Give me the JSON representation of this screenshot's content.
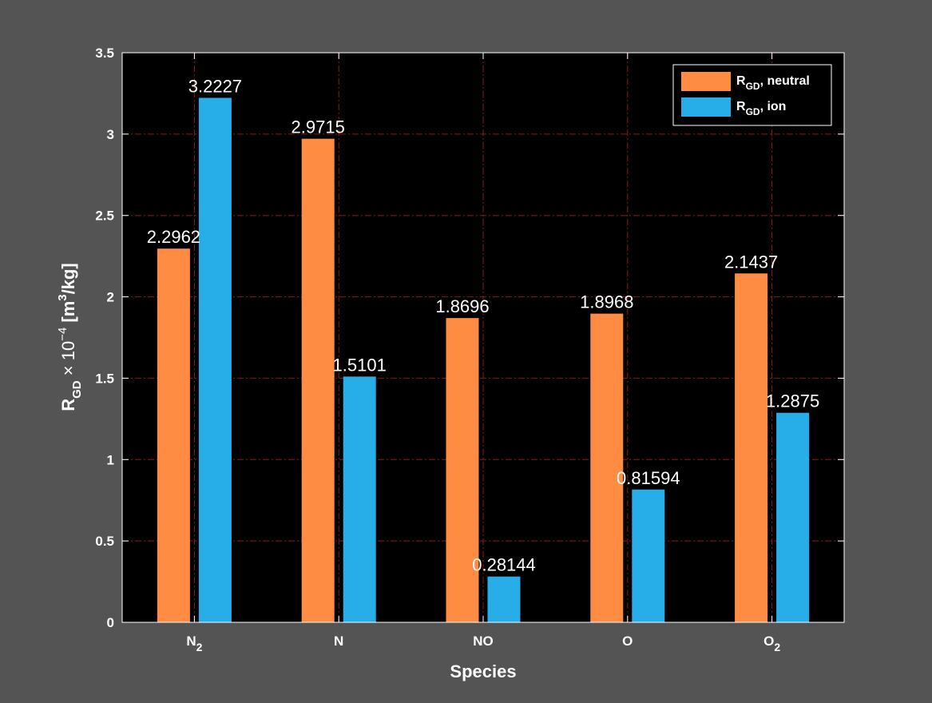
{
  "chart_data": {
    "type": "bar",
    "categories": [
      "N2",
      "N",
      "NO",
      "O",
      "O2"
    ],
    "category_labels": [
      {
        "base": "N",
        "sub": "2"
      },
      {
        "base": "N",
        "sub": ""
      },
      {
        "base": "NO",
        "sub": ""
      },
      {
        "base": "O",
        "sub": ""
      },
      {
        "base": "O",
        "sub": "2"
      }
    ],
    "series": [
      {
        "name": "R_GD, neutral",
        "legend": {
          "base": "R",
          "sub": "GD",
          "rest": ", neutral"
        },
        "color": "#FF8C42",
        "values": [
          2.2962,
          2.9715,
          1.8696,
          1.8968,
          2.1437
        ],
        "value_labels": [
          "2.2962",
          "2.9715",
          "1.8696",
          "1.8968",
          "2.1437"
        ]
      },
      {
        "name": "R_GD, ion",
        "legend": {
          "base": "R",
          "sub": "GD",
          "rest": ", ion"
        },
        "color": "#27AEE8",
        "values": [
          3.2227,
          1.5101,
          0.28144,
          0.81594,
          1.2875
        ],
        "value_labels": [
          "3.2227",
          "1.5101",
          "0.28144",
          "0.81594",
          "1.2875"
        ]
      }
    ],
    "xlabel": "Species",
    "ylabel": {
      "base": "R",
      "sub": "GD",
      "times": "× 10",
      "exp": "−4",
      "unit_open": "[m",
      "unit_exp": "3",
      "unit_close": "/kg]"
    },
    "ylim": [
      0,
      3.5
    ],
    "yticks": [
      0,
      0.5,
      1,
      1.5,
      2,
      2.5,
      3,
      3.5
    ],
    "ytick_labels": [
      "0",
      "0.5",
      "1",
      "1.5",
      "2",
      "2.5",
      "3",
      "3.5"
    ],
    "grid": true,
    "legend_position": "top-right",
    "colors": {
      "figure_background": "#545454",
      "axes_background": "#000000",
      "axes_edge": "#ffffff",
      "grid": "#8B1A1A",
      "text": "#ffffff"
    }
  }
}
